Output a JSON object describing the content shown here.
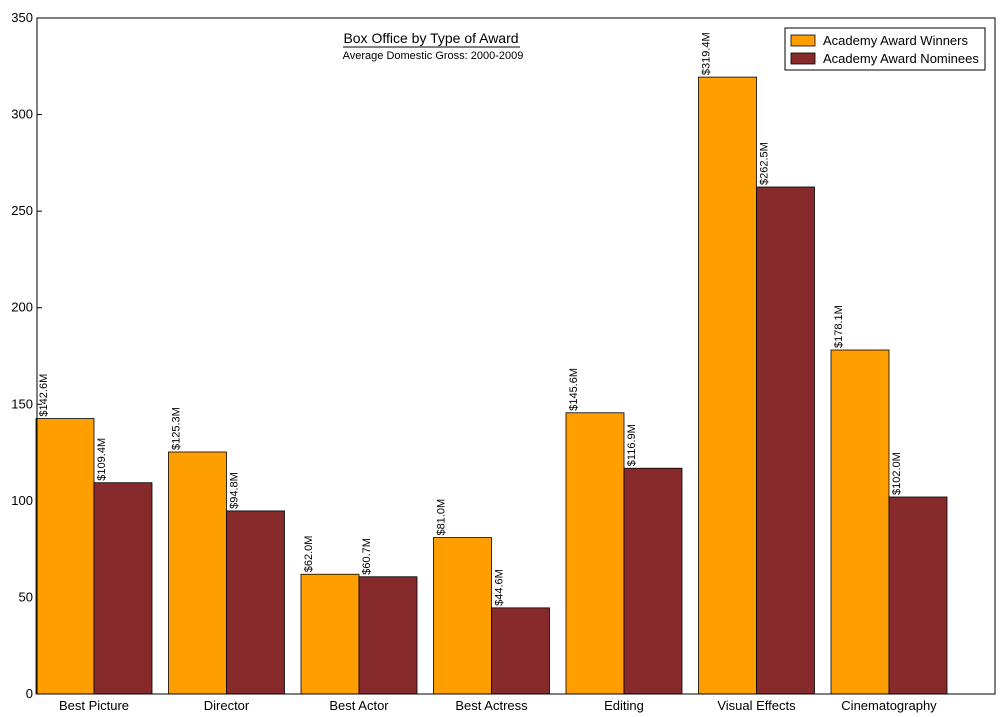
{
  "chart_data": {
    "type": "bar",
    "title": "Box Office by Type of Award",
    "subtitle": "Average Domestic Gross: 2000-2009",
    "xlabel": "",
    "ylabel": "",
    "ylim": [
      0,
      350
    ],
    "yticks": [
      0,
      50,
      100,
      150,
      200,
      250,
      300,
      350
    ],
    "legend_position": "top-right",
    "categories": [
      "Best Picture",
      "Director",
      "Best Actor",
      "Best Actress",
      "Editing",
      "Visual Effects",
      "Cinematography"
    ],
    "series": [
      {
        "name": "Academy Award Winners",
        "color": "#ff9e00",
        "values": [
          142.6,
          125.3,
          62.0,
          81.0,
          145.6,
          319.4,
          178.1
        ],
        "labels": [
          "$142.6M",
          "$125.3M",
          "$62.0M",
          "$81.0M",
          "$145.6M",
          "$319.4M",
          "$178.1M"
        ]
      },
      {
        "name": "Academy Award Nominees",
        "color": "#862a2c",
        "values": [
          109.4,
          94.8,
          60.7,
          44.6,
          116.9,
          262.5,
          102.0
        ],
        "labels": [
          "$109.4M",
          "$94.8M",
          "$60.7M",
          "$44.6M",
          "$116.9M",
          "$262.5M",
          "$102.0M"
        ]
      }
    ]
  }
}
